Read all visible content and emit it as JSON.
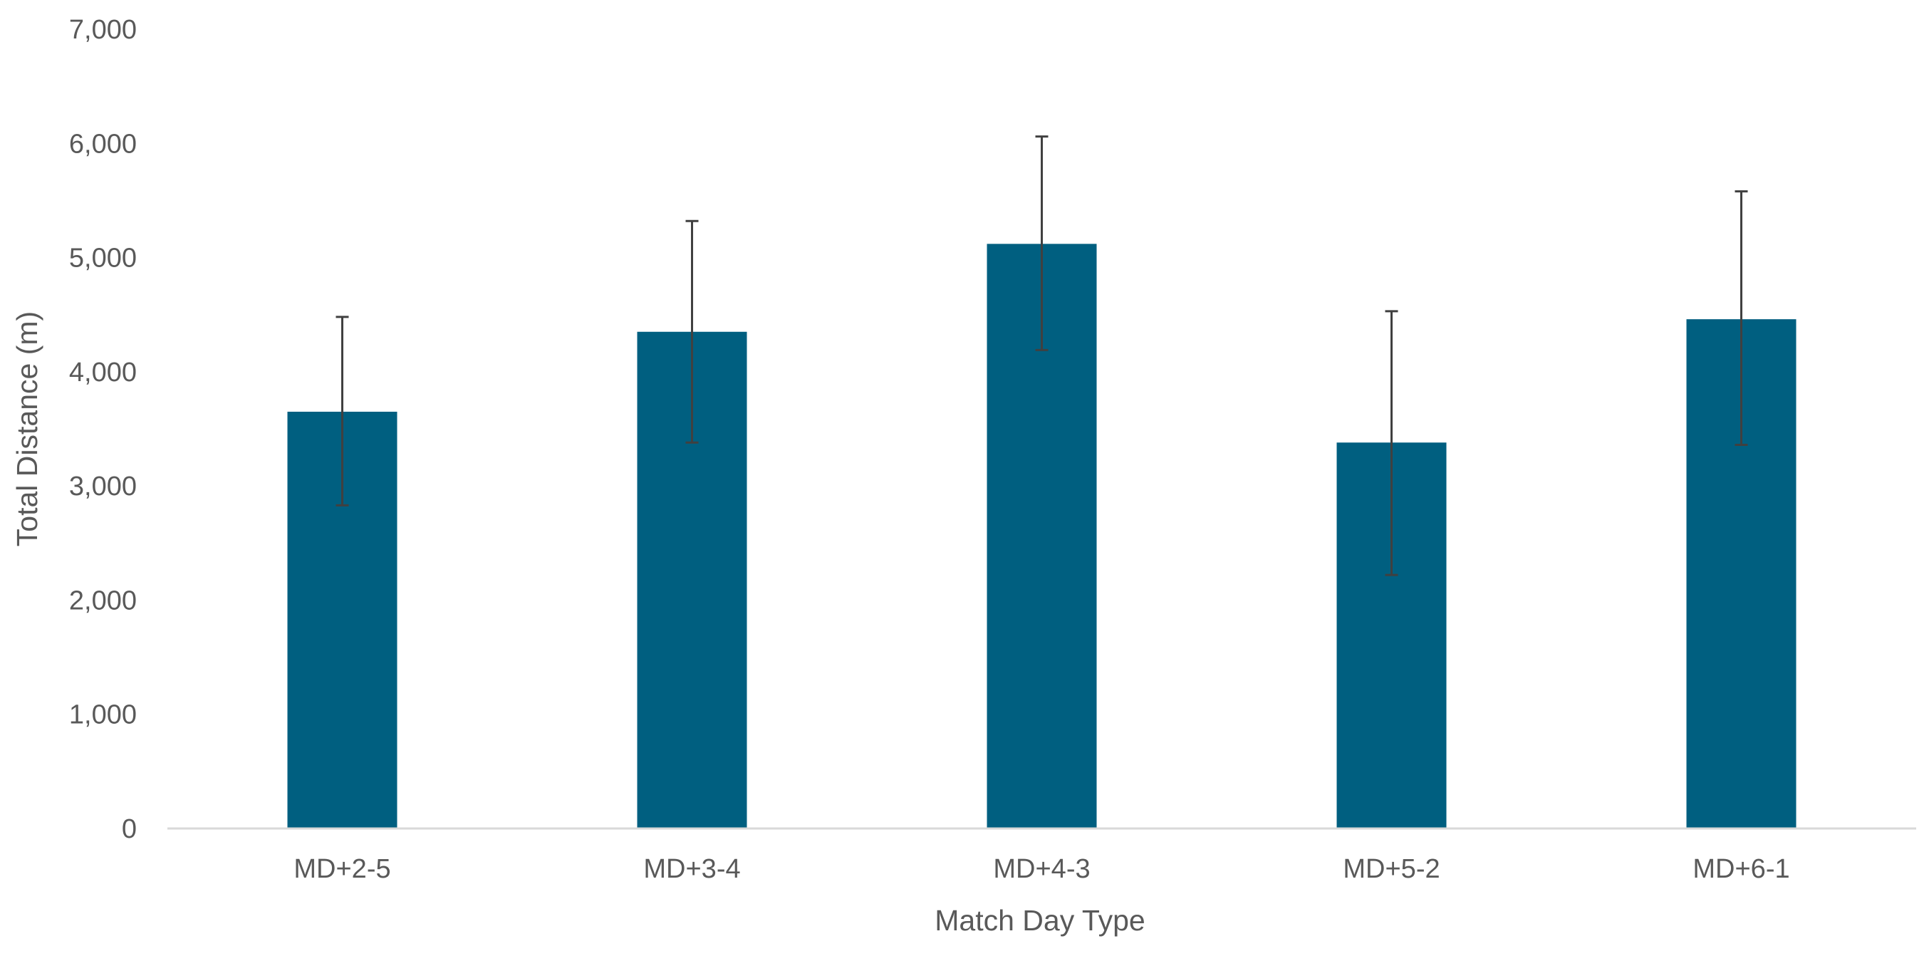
{
  "chart_data": {
    "type": "bar",
    "title": "",
    "xlabel": "Match Day Type",
    "ylabel": "Total Distance (m)",
    "categories": [
      "MD+2-5",
      "MD+3-4",
      "MD+4-3",
      "MD+5-2",
      "MD+6-1"
    ],
    "values": [
      3650,
      4350,
      5120,
      3380,
      4460
    ],
    "error_upper": [
      4480,
      5320,
      6060,
      4530,
      5580
    ],
    "error_lower": [
      2830,
      3380,
      4190,
      2220,
      3360
    ],
    "ylim": [
      0,
      7000
    ],
    "yticks": [
      0,
      1000,
      2000,
      3000,
      4000,
      5000,
      6000,
      7000
    ],
    "ytick_labels": [
      "0",
      "1,000",
      "2,000",
      "3,000",
      "4,000",
      "5,000",
      "6,000",
      "7,000"
    ],
    "grid": false,
    "legend": "none",
    "colors": {
      "bar": "#005f80",
      "error_bar": "#404040",
      "axis": "#d9d9d9",
      "text": "#595959"
    }
  }
}
